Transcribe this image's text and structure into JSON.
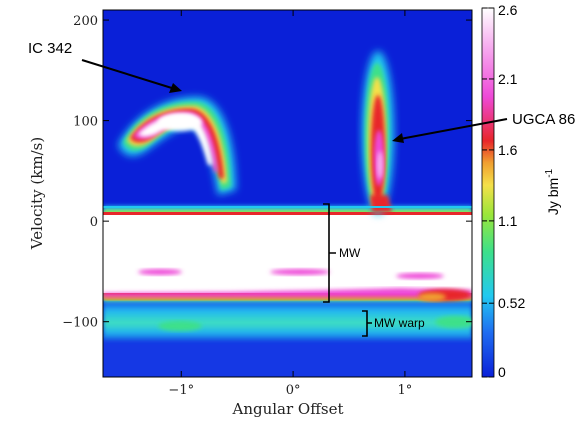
{
  "chart_data": {
    "type": "heatmap",
    "xlabel": "Angular Offset",
    "ylabel": "Velocity (km/s)",
    "xlim": [
      -1.7,
      1.6
    ],
    "ylim": [
      -155,
      210
    ],
    "x_ticks": [
      {
        "value": -1,
        "label": "−1°"
      },
      {
        "value": 0,
        "label": "0°"
      },
      {
        "value": 1,
        "label": "1°"
      }
    ],
    "y_ticks": [
      {
        "value": 200,
        "label": "200"
      },
      {
        "value": 100,
        "label": "100"
      },
      {
        "value": 0,
        "label": "0"
      },
      {
        "value": -100,
        "label": "−100"
      }
    ],
    "colorbar": {
      "label": "Jy bm",
      "label_exp": "-1",
      "range": [
        0,
        2.6
      ],
      "ticks": [
        {
          "value": 2.6,
          "label": "2.6"
        },
        {
          "value": 2.1,
          "label": "2.1"
        },
        {
          "value": 1.6,
          "label": "1.6"
        },
        {
          "value": 1.1,
          "label": "1.1"
        },
        {
          "value": 0.52,
          "label": "0.52"
        },
        {
          "value": 0,
          "label": "0"
        }
      ],
      "colors": [
        "#0a20d8",
        "#1f6cf0",
        "#22c9f0",
        "#3de08a",
        "#9ae63a",
        "#f4e04a",
        "#f0a030",
        "#e8262a",
        "#ee4ad8",
        "#f7b0f0",
        "#ffffff"
      ]
    },
    "annotations": [
      {
        "text": "IC 342",
        "x": -0.95,
        "y": 128
      },
      {
        "text": "UGCA 86",
        "x": 0.85,
        "y": 78
      },
      {
        "text": "MW",
        "x": 0.35,
        "y": -30
      },
      {
        "text": "MW warp",
        "x": 0.7,
        "y": -100
      }
    ]
  }
}
